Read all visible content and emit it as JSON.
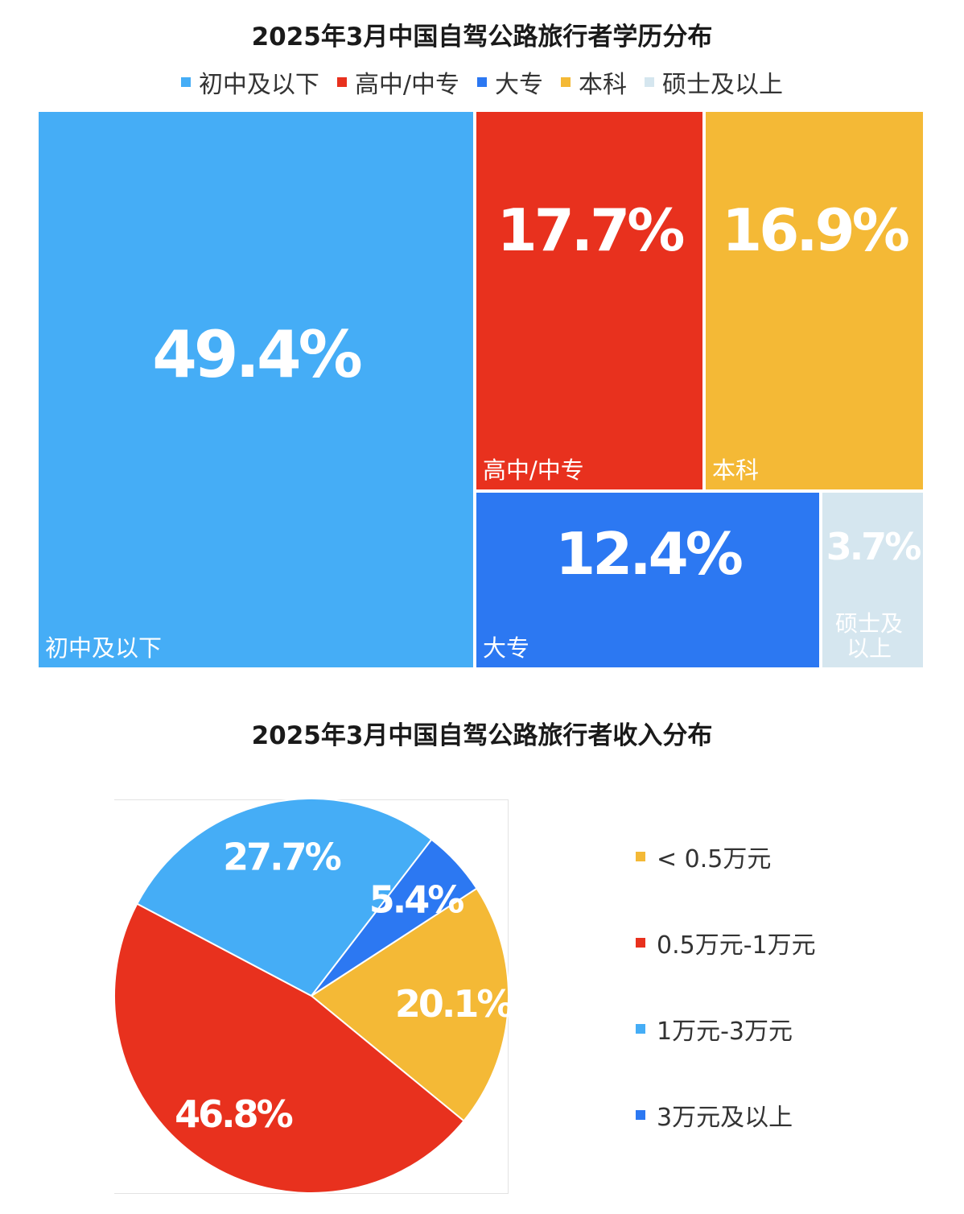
{
  "chart_data": [
    {
      "type": "treemap",
      "title": "2025年3月中国自驾公路旅行者学历分布",
      "legend_position": "top",
      "categories": [
        "初中及以下",
        "高中/中专",
        "大专",
        "本科",
        "硕士及以上"
      ],
      "values": [
        49.4,
        17.7,
        12.4,
        16.9,
        3.7
      ],
      "value_labels": [
        "49.4%",
        "17.7%",
        "12.4%",
        "16.9%",
        "3.7%"
      ],
      "colors": [
        "#45ADF6",
        "#E8311E",
        "#2C78F2",
        "#F4B936",
        "#D5E6EF"
      ],
      "legend": [
        "初中及以下",
        "高中/中专",
        "大专",
        "本科",
        "硕士及以上"
      ]
    },
    {
      "type": "pie",
      "title": "2025年3月中国自驾公路旅行者收入分布",
      "legend_position": "right",
      "categories": [
        "< 0.5万元",
        "0.5万元-1万元",
        "1万元-3万元",
        "3万元及以上"
      ],
      "values": [
        20.1,
        46.8,
        27.7,
        5.4
      ],
      "value_labels": [
        "20.1%",
        "46.8%",
        "27.7%",
        "5.4%"
      ],
      "colors": [
        "#F4B936",
        "#E8311E",
        "#45ADF6",
        "#2C78F2"
      ],
      "legend": [
        "< 0.5万元",
        "0.5万元-1万元",
        "1万元-3万元",
        "3万元及以上"
      ]
    }
  ]
}
